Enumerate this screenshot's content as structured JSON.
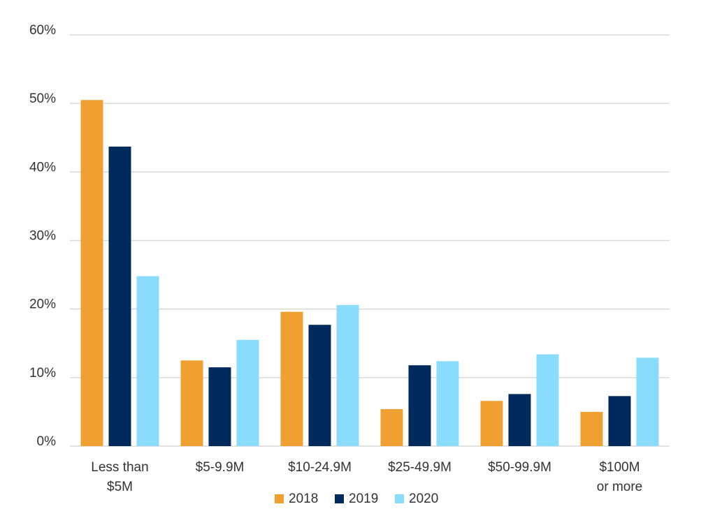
{
  "chart_data": {
    "type": "bar",
    "categories": [
      "Less than\n$5M",
      "$5-9.9M",
      "$10-24.9M",
      "$25-49.9M",
      "$50-99.9M",
      "$100M\nor more"
    ],
    "series": [
      {
        "name": "2018",
        "color": "#f0a030",
        "values": [
          50.5,
          12.5,
          19.6,
          5.4,
          6.6,
          5.0
        ]
      },
      {
        "name": "2019",
        "color": "#002a5c",
        "values": [
          43.7,
          11.5,
          17.7,
          11.8,
          7.6,
          7.3
        ]
      },
      {
        "name": "2020",
        "color": "#8adcfc",
        "values": [
          24.8,
          15.5,
          20.6,
          12.4,
          13.4,
          12.9
        ]
      }
    ],
    "ylim": [
      0,
      60
    ],
    "yticks": [
      {
        "value": 0,
        "label": "0%"
      },
      {
        "value": 10,
        "label": "10%"
      },
      {
        "value": 20,
        "label": "20%"
      },
      {
        "value": 30,
        "label": "30%"
      },
      {
        "value": 40,
        "label": "40%"
      },
      {
        "value": 50,
        "label": "50%"
      },
      {
        "value": 60,
        "label": "60%"
      }
    ],
    "grid": true,
    "legend": "bottom"
  }
}
